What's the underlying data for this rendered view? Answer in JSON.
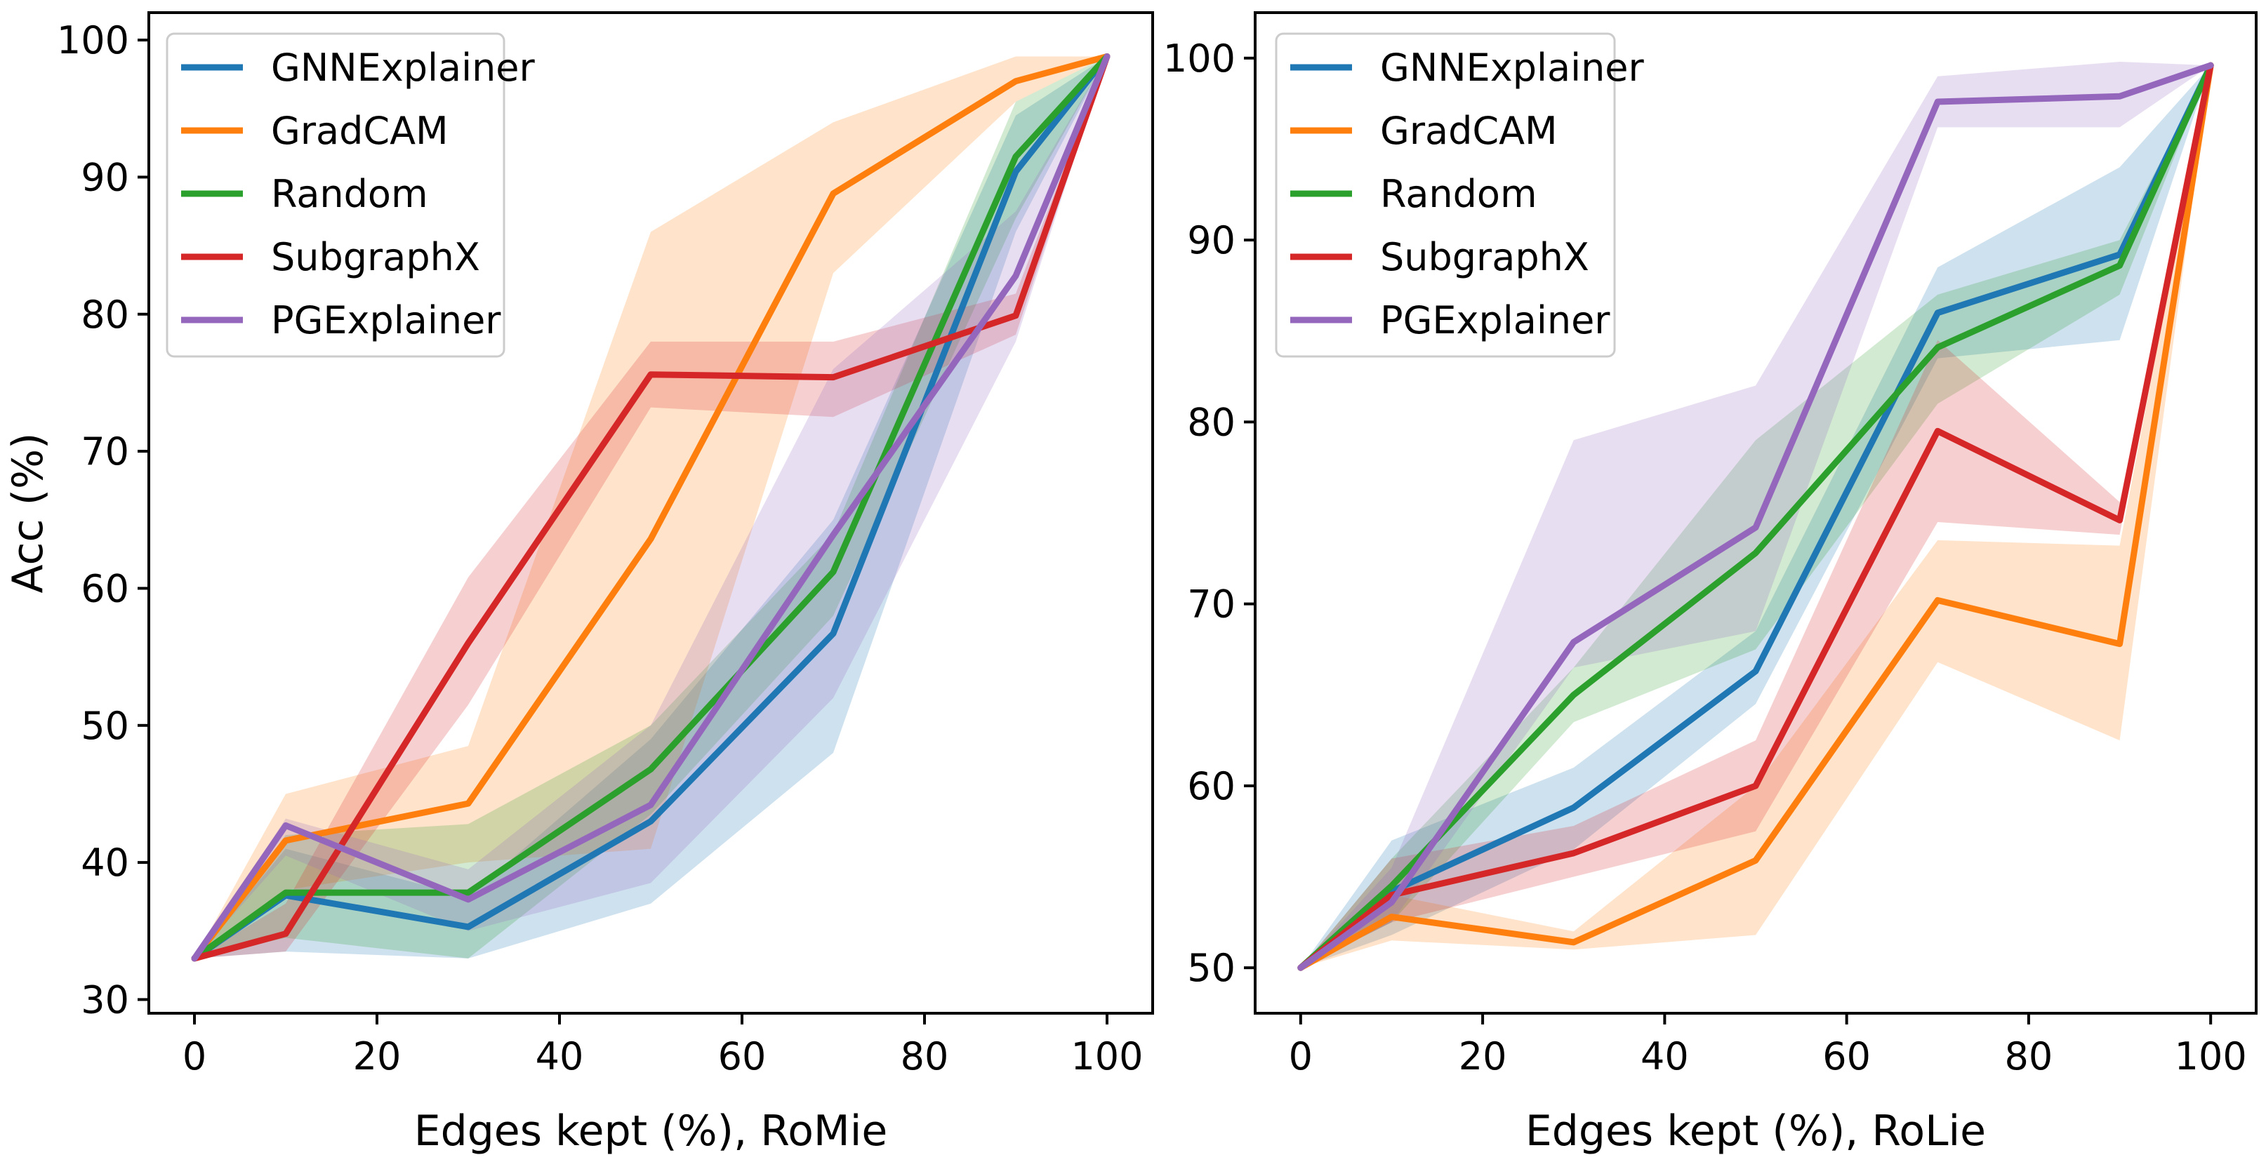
{
  "chart_data": [
    {
      "type": "line",
      "title": "",
      "xlabel": "Edges kept (%), RoMie",
      "ylabel": "Acc (%)",
      "xlim": [
        -5,
        105
      ],
      "ylim": [
        29,
        102
      ],
      "xticks": [
        0,
        20,
        40,
        60,
        80,
        100
      ],
      "yticks": [
        30,
        40,
        50,
        60,
        70,
        80,
        90,
        100
      ],
      "legend_position": "top-left",
      "series": [
        {
          "name": "GNNExplainer",
          "color": "#1f77b4",
          "x": [
            0,
            10,
            30,
            50,
            70,
            90,
            100
          ],
          "values": [
            33.0,
            37.6,
            35.3,
            43.0,
            56.7,
            90.4,
            98.8
          ],
          "lower": [
            33.0,
            33.5,
            33.0,
            37.0,
            48.0,
            86.0,
            98.8
          ],
          "upper": [
            33.0,
            41.0,
            37.5,
            49.0,
            65.0,
            94.5,
            98.8
          ]
        },
        {
          "name": "GradCAM",
          "color": "#ff7f0e",
          "x": [
            0,
            10,
            30,
            50,
            70,
            90,
            100
          ],
          "values": [
            33.0,
            41.6,
            44.3,
            63.6,
            88.8,
            97.0,
            98.8
          ],
          "lower": [
            33.0,
            38.0,
            40.0,
            41.0,
            83.0,
            95.5,
            98.8
          ],
          "upper": [
            33.0,
            45.0,
            48.5,
            86.0,
            94.0,
            98.8,
            98.8
          ]
        },
        {
          "name": "Random",
          "color": "#2ca02c",
          "x": [
            0,
            10,
            30,
            50,
            70,
            90,
            100
          ],
          "values": [
            33.0,
            37.8,
            37.8,
            46.8,
            61.2,
            91.5,
            98.8
          ],
          "lower": [
            33.0,
            34.5,
            33.0,
            43.5,
            58.0,
            87.0,
            98.8
          ],
          "upper": [
            33.0,
            42.0,
            42.8,
            50.0,
            64.0,
            95.5,
            98.8
          ]
        },
        {
          "name": "SubgraphX",
          "color": "#d62728",
          "x": [
            0,
            10,
            30,
            50,
            70,
            90,
            100
          ],
          "values": [
            33.0,
            34.8,
            56.0,
            75.6,
            75.4,
            79.9,
            98.8
          ],
          "lower": [
            33.0,
            33.5,
            51.5,
            73.2,
            72.5,
            78.5,
            98.8
          ],
          "upper": [
            33.0,
            37.0,
            60.8,
            78.0,
            78.0,
            81.5,
            98.8
          ]
        },
        {
          "name": "PGExplainer",
          "color": "#9467bd",
          "x": [
            0,
            10,
            30,
            50,
            70,
            90,
            100
          ],
          "values": [
            33.0,
            42.7,
            37.3,
            44.2,
            63.9,
            82.8,
            98.8
          ],
          "lower": [
            33.0,
            40.5,
            35.0,
            38.5,
            52.0,
            78.0,
            98.8
          ],
          "upper": [
            33.0,
            43.2,
            39.5,
            50.0,
            76.0,
            87.5,
            98.8
          ]
        }
      ]
    },
    {
      "type": "line",
      "title": "",
      "xlabel": "Edges kept (%), RoLie",
      "ylabel": "",
      "xlim": [
        -5,
        105
      ],
      "ylim": [
        47.5,
        102.5
      ],
      "xticks": [
        0,
        20,
        40,
        60,
        80,
        100
      ],
      "yticks": [
        50,
        60,
        70,
        80,
        90,
        100
      ],
      "legend_position": "top-left",
      "series": [
        {
          "name": "GNNExplainer",
          "color": "#1f77b4",
          "x": [
            0,
            10,
            30,
            50,
            70,
            90,
            100
          ],
          "values": [
            50.0,
            54.2,
            58.8,
            66.3,
            86.0,
            89.2,
            99.6
          ],
          "lower": [
            50.0,
            51.8,
            56.5,
            64.5,
            83.5,
            84.5,
            99.6
          ],
          "upper": [
            50.0,
            57.0,
            61.0,
            68.5,
            88.5,
            94.0,
            99.6
          ]
        },
        {
          "name": "GradCAM",
          "color": "#ff7f0e",
          "x": [
            0,
            10,
            30,
            50,
            70,
            90,
            100
          ],
          "values": [
            50.0,
            52.8,
            51.4,
            55.9,
            70.2,
            67.8,
            99.6
          ],
          "lower": [
            50.0,
            51.5,
            51.0,
            51.8,
            66.8,
            62.5,
            99.6
          ],
          "upper": [
            50.0,
            54.0,
            52.0,
            60.0,
            73.5,
            73.2,
            99.6
          ]
        },
        {
          "name": "Random",
          "color": "#2ca02c",
          "x": [
            0,
            10,
            30,
            50,
            70,
            90,
            100
          ],
          "values": [
            50.0,
            54.5,
            65.0,
            72.8,
            84.1,
            88.6,
            99.6
          ],
          "lower": [
            50.0,
            52.5,
            63.5,
            67.5,
            81.0,
            87.0,
            99.6
          ],
          "upper": [
            50.0,
            56.0,
            66.5,
            79.0,
            87.0,
            90.0,
            99.6
          ]
        },
        {
          "name": "SubgraphX",
          "color": "#d62728",
          "x": [
            0,
            10,
            30,
            50,
            70,
            90,
            100
          ],
          "values": [
            50.0,
            54.0,
            56.3,
            60.0,
            79.5,
            74.6,
            99.6
          ],
          "lower": [
            50.0,
            52.5,
            55.0,
            57.5,
            74.5,
            73.8,
            99.6
          ],
          "upper": [
            50.0,
            56.0,
            57.8,
            62.5,
            84.5,
            75.6,
            99.6
          ]
        },
        {
          "name": "PGExplainer",
          "color": "#9467bd",
          "x": [
            0,
            10,
            30,
            50,
            70,
            90,
            100
          ],
          "values": [
            50.0,
            53.6,
            67.9,
            74.2,
            97.6,
            97.9,
            99.6
          ],
          "lower": [
            50.0,
            52.5,
            66.5,
            68.5,
            96.2,
            96.2,
            99.6
          ],
          "upper": [
            50.0,
            55.5,
            79.0,
            82.0,
            99.0,
            99.8,
            99.6
          ]
        }
      ]
    }
  ]
}
